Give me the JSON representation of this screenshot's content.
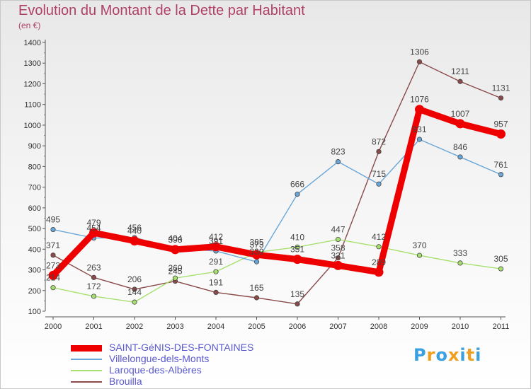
{
  "title": "Evolution du Montant de la Dette par Habitant",
  "subtitle": "(en €)",
  "logo_text": "Proxiti",
  "chart_data": {
    "type": "line",
    "title": "Evolution du Montant de la Dette par Habitant",
    "subtitle": "(en €)",
    "xlabel": "",
    "ylabel": "",
    "ylim": [
      100,
      1400
    ],
    "yticks": [
      100,
      200,
      300,
      400,
      500,
      600,
      700,
      800,
      900,
      1000,
      1100,
      1200,
      1300,
      1400
    ],
    "grid": false,
    "legend_position": "bottom-left",
    "categories": [
      "2000",
      "2001",
      "2002",
      "2003",
      "2004",
      "2005",
      "2006",
      "2007",
      "2008",
      "2009",
      "2010",
      "2011"
    ],
    "series": [
      {
        "name": "SAINT-GéNIS-DES-FONTAINES",
        "color": "#ee0000",
        "values": [
          273,
          479,
          440,
          398,
          412,
          373,
          351,
          321,
          289,
          1076,
          1007,
          957
        ]
      },
      {
        "name": "Villelongue-dels-Monts",
        "color": "#6aa6d8",
        "values": [
          495,
          454,
          456,
          404,
          391,
          339,
          666,
          823,
          715,
          931,
          846,
          761
        ]
      },
      {
        "name": "Laroque-des-Albères",
        "color": "#a8e070",
        "values": [
          214,
          172,
          144,
          260,
          291,
          385,
          410,
          447,
          412,
          370,
          333,
          305
        ]
      },
      {
        "name": "Brouilla",
        "color": "#8a4a4a",
        "values": [
          371,
          263,
          206,
          245,
          191,
          165,
          135,
          358,
          872,
          1306,
          1211,
          1131
        ]
      }
    ]
  }
}
